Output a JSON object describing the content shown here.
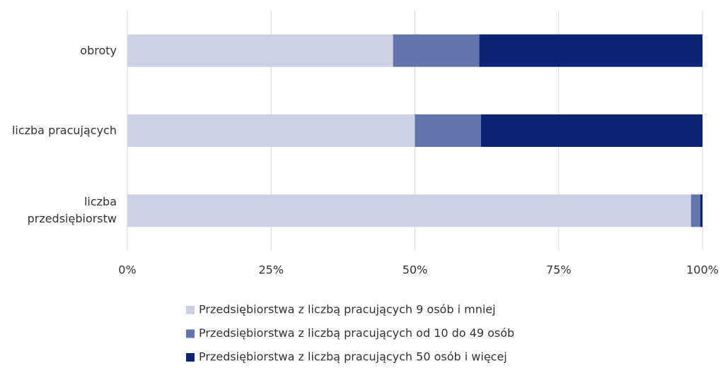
{
  "chart_data": {
    "type": "stacked_barh",
    "categories": [
      "obroty",
      "liczba pracujących",
      "liczba przedsiębiorstw"
    ],
    "series": [
      {
        "name": "Przedsiębiorstwa z liczbą pracujących 9 osób i mniej",
        "color": "#cdd1e4",
        "values": [
          46.2,
          50.0,
          98.0
        ]
      },
      {
        "name": "Przedsiębiorstwa z liczbą pracujących od 10 do 49 osób",
        "color": "#6475ad",
        "values": [
          15.0,
          11.5,
          1.6
        ]
      },
      {
        "name": "Przedsiębiorstwa z liczbą pracujących 50 osób i więcej",
        "color": "#0b2275",
        "values": [
          38.8,
          38.5,
          0.4
        ]
      }
    ],
    "xlim": [
      0,
      100
    ],
    "xticks": [
      {
        "value": 0,
        "label": "0%"
      },
      {
        "value": 25,
        "label": "25%"
      },
      {
        "value": 50,
        "label": "50%"
      },
      {
        "value": 75,
        "label": "75%"
      },
      {
        "value": 100,
        "label": "100%"
      }
    ],
    "grid": true,
    "legend": "bottom"
  }
}
